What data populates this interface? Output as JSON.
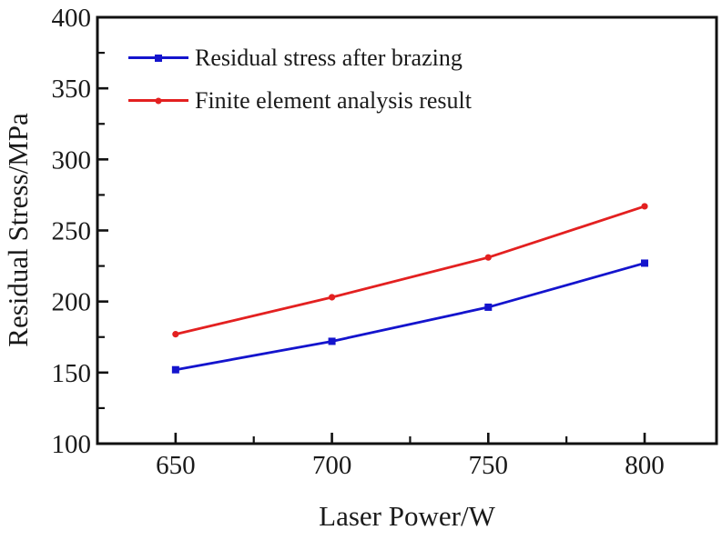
{
  "figure": {
    "background": "#ffffff",
    "axis_color": "#111111",
    "text_color": "#1a1a1a"
  },
  "chart_data": {
    "type": "line",
    "title": "",
    "xlabel": "Laser Power/W",
    "ylabel": "Residual Stress/MPa",
    "x": [
      650,
      700,
      750,
      800
    ],
    "series": [
      {
        "name": "Residual stress after brazing",
        "color": "#1414cd",
        "marker": "square",
        "values": [
          152,
          172,
          196,
          227
        ]
      },
      {
        "name": "Finite element analysis result",
        "color": "#e32020",
        "marker": "circle",
        "values": [
          177,
          203,
          231,
          267
        ]
      }
    ],
    "xlim": [
      625,
      823
    ],
    "ylim": [
      100,
      400
    ],
    "x_major_ticks": [
      650,
      700,
      750,
      800
    ],
    "x_minor_ticks": [
      675,
      725,
      775
    ],
    "y_major_ticks": [
      100,
      150,
      200,
      250,
      300,
      350,
      400
    ],
    "y_minor_ticks": [
      125,
      175,
      225,
      275,
      325,
      375
    ],
    "grid": false,
    "tick_direction": "in",
    "legend_position": "top-left-inside"
  }
}
